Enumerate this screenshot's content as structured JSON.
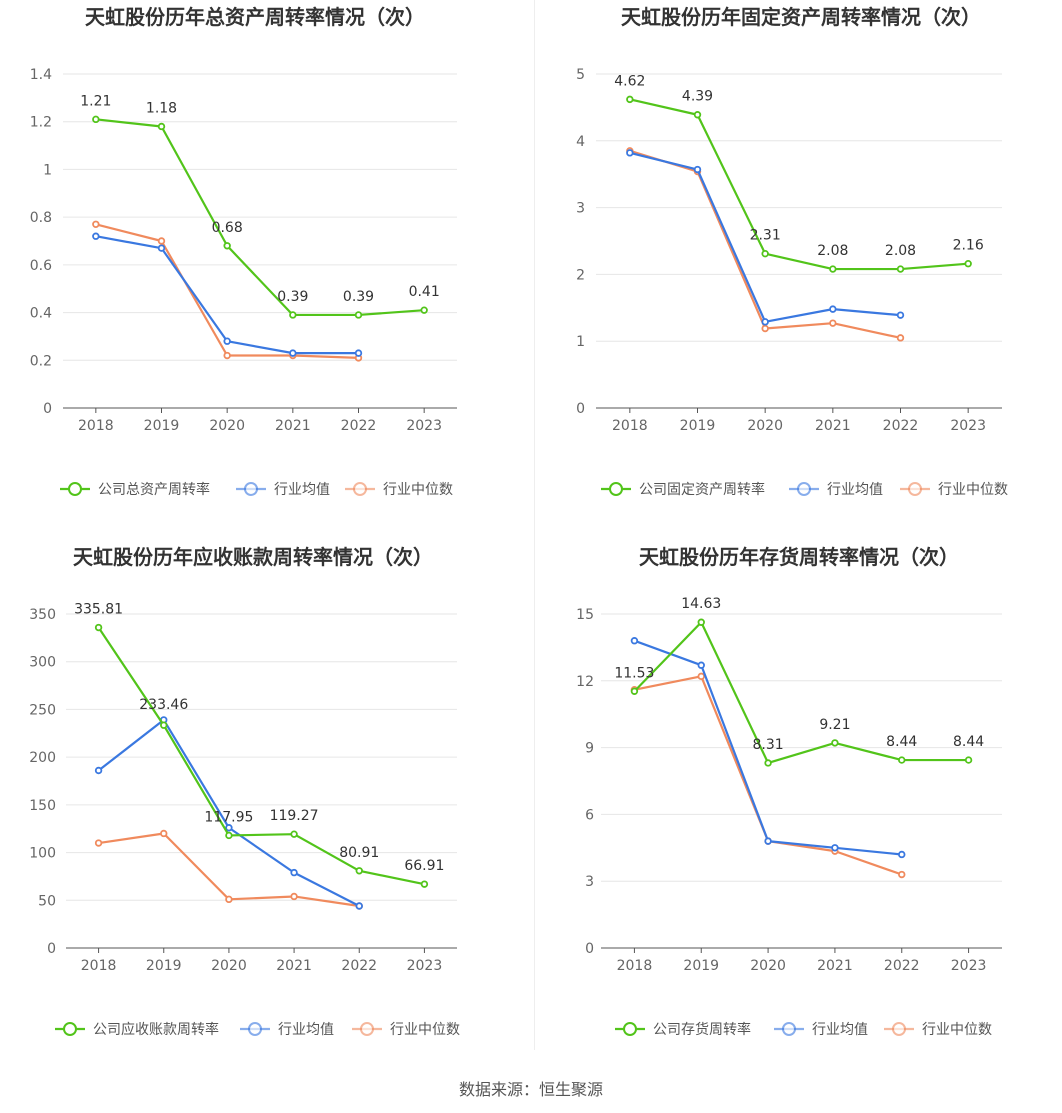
{
  "source_text": "数据来源：恒生聚源",
  "colors": {
    "company": "#52c41a",
    "industry_avg": "#3a78e0",
    "industry_median": "#f08a5d",
    "grid": "#e6e6e6",
    "axis": "#666666"
  },
  "chart_data": [
    {
      "type": "line",
      "title": "天虹股份历年总资产周转率情况（次）",
      "categories": [
        "2018",
        "2019",
        "2020",
        "2021",
        "2022",
        "2023"
      ],
      "yticks": [
        "0",
        "0.2",
        "0.4",
        "0.6",
        "0.8",
        "1",
        "1.2",
        "1.4"
      ],
      "ylim": [
        0,
        1.4
      ],
      "grid": true,
      "legend_position": "bottom",
      "series": [
        {
          "name": "公司总资产周转率",
          "values": [
            1.21,
            1.18,
            0.68,
            0.39,
            0.39,
            0.41
          ],
          "labels": [
            "1.21",
            "1.18",
            "0.68",
            "0.39",
            "0.39",
            "0.41"
          ]
        },
        {
          "name": "行业均值",
          "values": [
            0.72,
            0.67,
            0.28,
            0.23,
            0.23,
            null
          ]
        },
        {
          "name": "行业中位数",
          "values": [
            0.77,
            0.7,
            0.22,
            0.22,
            0.21,
            null
          ]
        }
      ]
    },
    {
      "type": "line",
      "title": "天虹股份历年固定资产周转率情况（次）",
      "categories": [
        "2018",
        "2019",
        "2020",
        "2021",
        "2022",
        "2023"
      ],
      "yticks": [
        "0",
        "1",
        "2",
        "3",
        "4",
        "5"
      ],
      "ylim": [
        0,
        5
      ],
      "grid": true,
      "legend_position": "bottom",
      "series": [
        {
          "name": "公司固定资产周转率",
          "values": [
            4.62,
            4.39,
            2.31,
            2.08,
            2.08,
            2.16
          ],
          "labels": [
            "4.62",
            "4.39",
            "2.31",
            "2.08",
            "2.08",
            "2.16"
          ]
        },
        {
          "name": "行业均值",
          "values": [
            3.82,
            3.57,
            1.29,
            1.48,
            1.39,
            null
          ]
        },
        {
          "name": "行业中位数",
          "values": [
            3.85,
            3.54,
            1.19,
            1.27,
            1.05,
            null
          ]
        }
      ]
    },
    {
      "type": "line",
      "title": "天虹股份历年应收账款周转率情况（次）",
      "categories": [
        "2018",
        "2019",
        "2020",
        "2021",
        "2022",
        "2023"
      ],
      "yticks": [
        "0",
        "50",
        "100",
        "150",
        "200",
        "250",
        "300",
        "350"
      ],
      "ylim": [
        0,
        350
      ],
      "grid": true,
      "legend_position": "bottom",
      "series": [
        {
          "name": "公司应收账款周转率",
          "values": [
            335.81,
            233.46,
            117.95,
            119.27,
            80.91,
            66.91
          ],
          "labels": [
            "335.81",
            "233.46",
            "117.95",
            "119.27",
            "80.91",
            "66.91"
          ]
        },
        {
          "name": "行业均值",
          "values": [
            186,
            239,
            126,
            79,
            44,
            null
          ]
        },
        {
          "name": "行业中位数",
          "values": [
            110,
            120,
            51,
            54,
            44,
            null
          ]
        }
      ]
    },
    {
      "type": "line",
      "title": "天虹股份历年存货周转率情况（次）",
      "categories": [
        "2018",
        "2019",
        "2020",
        "2021",
        "2022",
        "2023"
      ],
      "yticks": [
        "0",
        "3",
        "6",
        "9",
        "12",
        "15"
      ],
      "ylim": [
        0,
        15
      ],
      "grid": true,
      "legend_position": "bottom",
      "series": [
        {
          "name": "公司存货周转率",
          "values": [
            11.53,
            14.63,
            8.31,
            9.21,
            8.44,
            8.44
          ],
          "labels": [
            "11.53",
            "14.63",
            "8.31",
            "9.21",
            "8.44",
            "8.44"
          ]
        },
        {
          "name": "行业均值",
          "values": [
            13.8,
            12.7,
            4.8,
            4.5,
            4.2,
            null
          ]
        },
        {
          "name": "行业中位数",
          "values": [
            11.6,
            12.2,
            4.8,
            4.35,
            3.3,
            null
          ]
        }
      ]
    }
  ]
}
